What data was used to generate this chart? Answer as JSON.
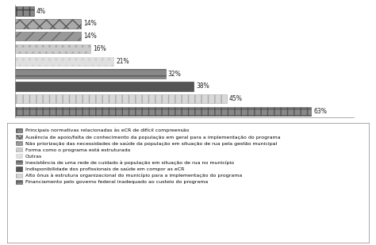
{
  "values": [
    4,
    14,
    14,
    16,
    21,
    32,
    38,
    45,
    63
  ],
  "labels": [
    "4%",
    "14%",
    "14%",
    "16%",
    "21%",
    "32%",
    "38%",
    "45%",
    "63%"
  ],
  "bar_styles": [
    {
      "fc": "#888888",
      "hatch": "++",
      "ec": "#444444"
    },
    {
      "fc": "#aaaaaa",
      "hatch": "xx",
      "ec": "#555555"
    },
    {
      "fc": "#999999",
      "hatch": "//",
      "ec": "#666666"
    },
    {
      "fc": "#cccccc",
      "hatch": "..",
      "ec": "#aaaaaa"
    },
    {
      "fc": "#e0e0e0",
      "hatch": "..",
      "ec": "#cccccc"
    },
    {
      "fc": "#888888",
      "hatch": "--",
      "ec": "#555555"
    },
    {
      "fc": "#555555",
      "hatch": "",
      "ec": "#333333"
    },
    {
      "fc": "#d8d8d8",
      "hatch": "||",
      "ec": "#aaaaaa"
    },
    {
      "fc": "#888888",
      "hatch": "++",
      "ec": "#555555"
    }
  ],
  "legend_labels": [
    "Principais normativas relacionadas às eCR de difícil compreensão",
    "Ausência de apoio/falta de conhecimento da população em geral para a implementação do programa",
    "Não priorização das necessidades de saúde da população em situação de rua pela gestão municipal",
    "Forma como o programa está estruturado",
    "Outras",
    "Inexistência de uma rede de cuidado à população em situação de rua no município",
    "Indisponibilidade dos profissionais de saúde em compor as eCR",
    "Alto ônus à estrutura organizacional do município para a implementação do programa",
    "Financiamento pelo governo federal inadequado ao custeio do programa"
  ],
  "legend_styles": [
    {
      "fc": "#888888",
      "hatch": "++",
      "ec": "#444444"
    },
    {
      "fc": "#aaaaaa",
      "hatch": "xx",
      "ec": "#555555"
    },
    {
      "fc": "#999999",
      "hatch": "//",
      "ec": "#666666"
    },
    {
      "fc": "#cccccc",
      "hatch": "..",
      "ec": "#aaaaaa"
    },
    {
      "fc": "#e0e0e0",
      "hatch": "..",
      "ec": "#cccccc"
    },
    {
      "fc": "#888888",
      "hatch": "--",
      "ec": "#555555"
    },
    {
      "fc": "#555555",
      "hatch": "",
      "ec": "#333333"
    },
    {
      "fc": "#d8d8d8",
      "hatch": "||",
      "ec": "#aaaaaa"
    },
    {
      "fc": "#888888",
      "hatch": "++",
      "ec": "#555555"
    }
  ],
  "xlim": [
    0,
    72
  ],
  "bar_height": 0.72,
  "label_fontsize": 5.5,
  "legend_fontsize": 4.5,
  "background_color": "#ffffff"
}
